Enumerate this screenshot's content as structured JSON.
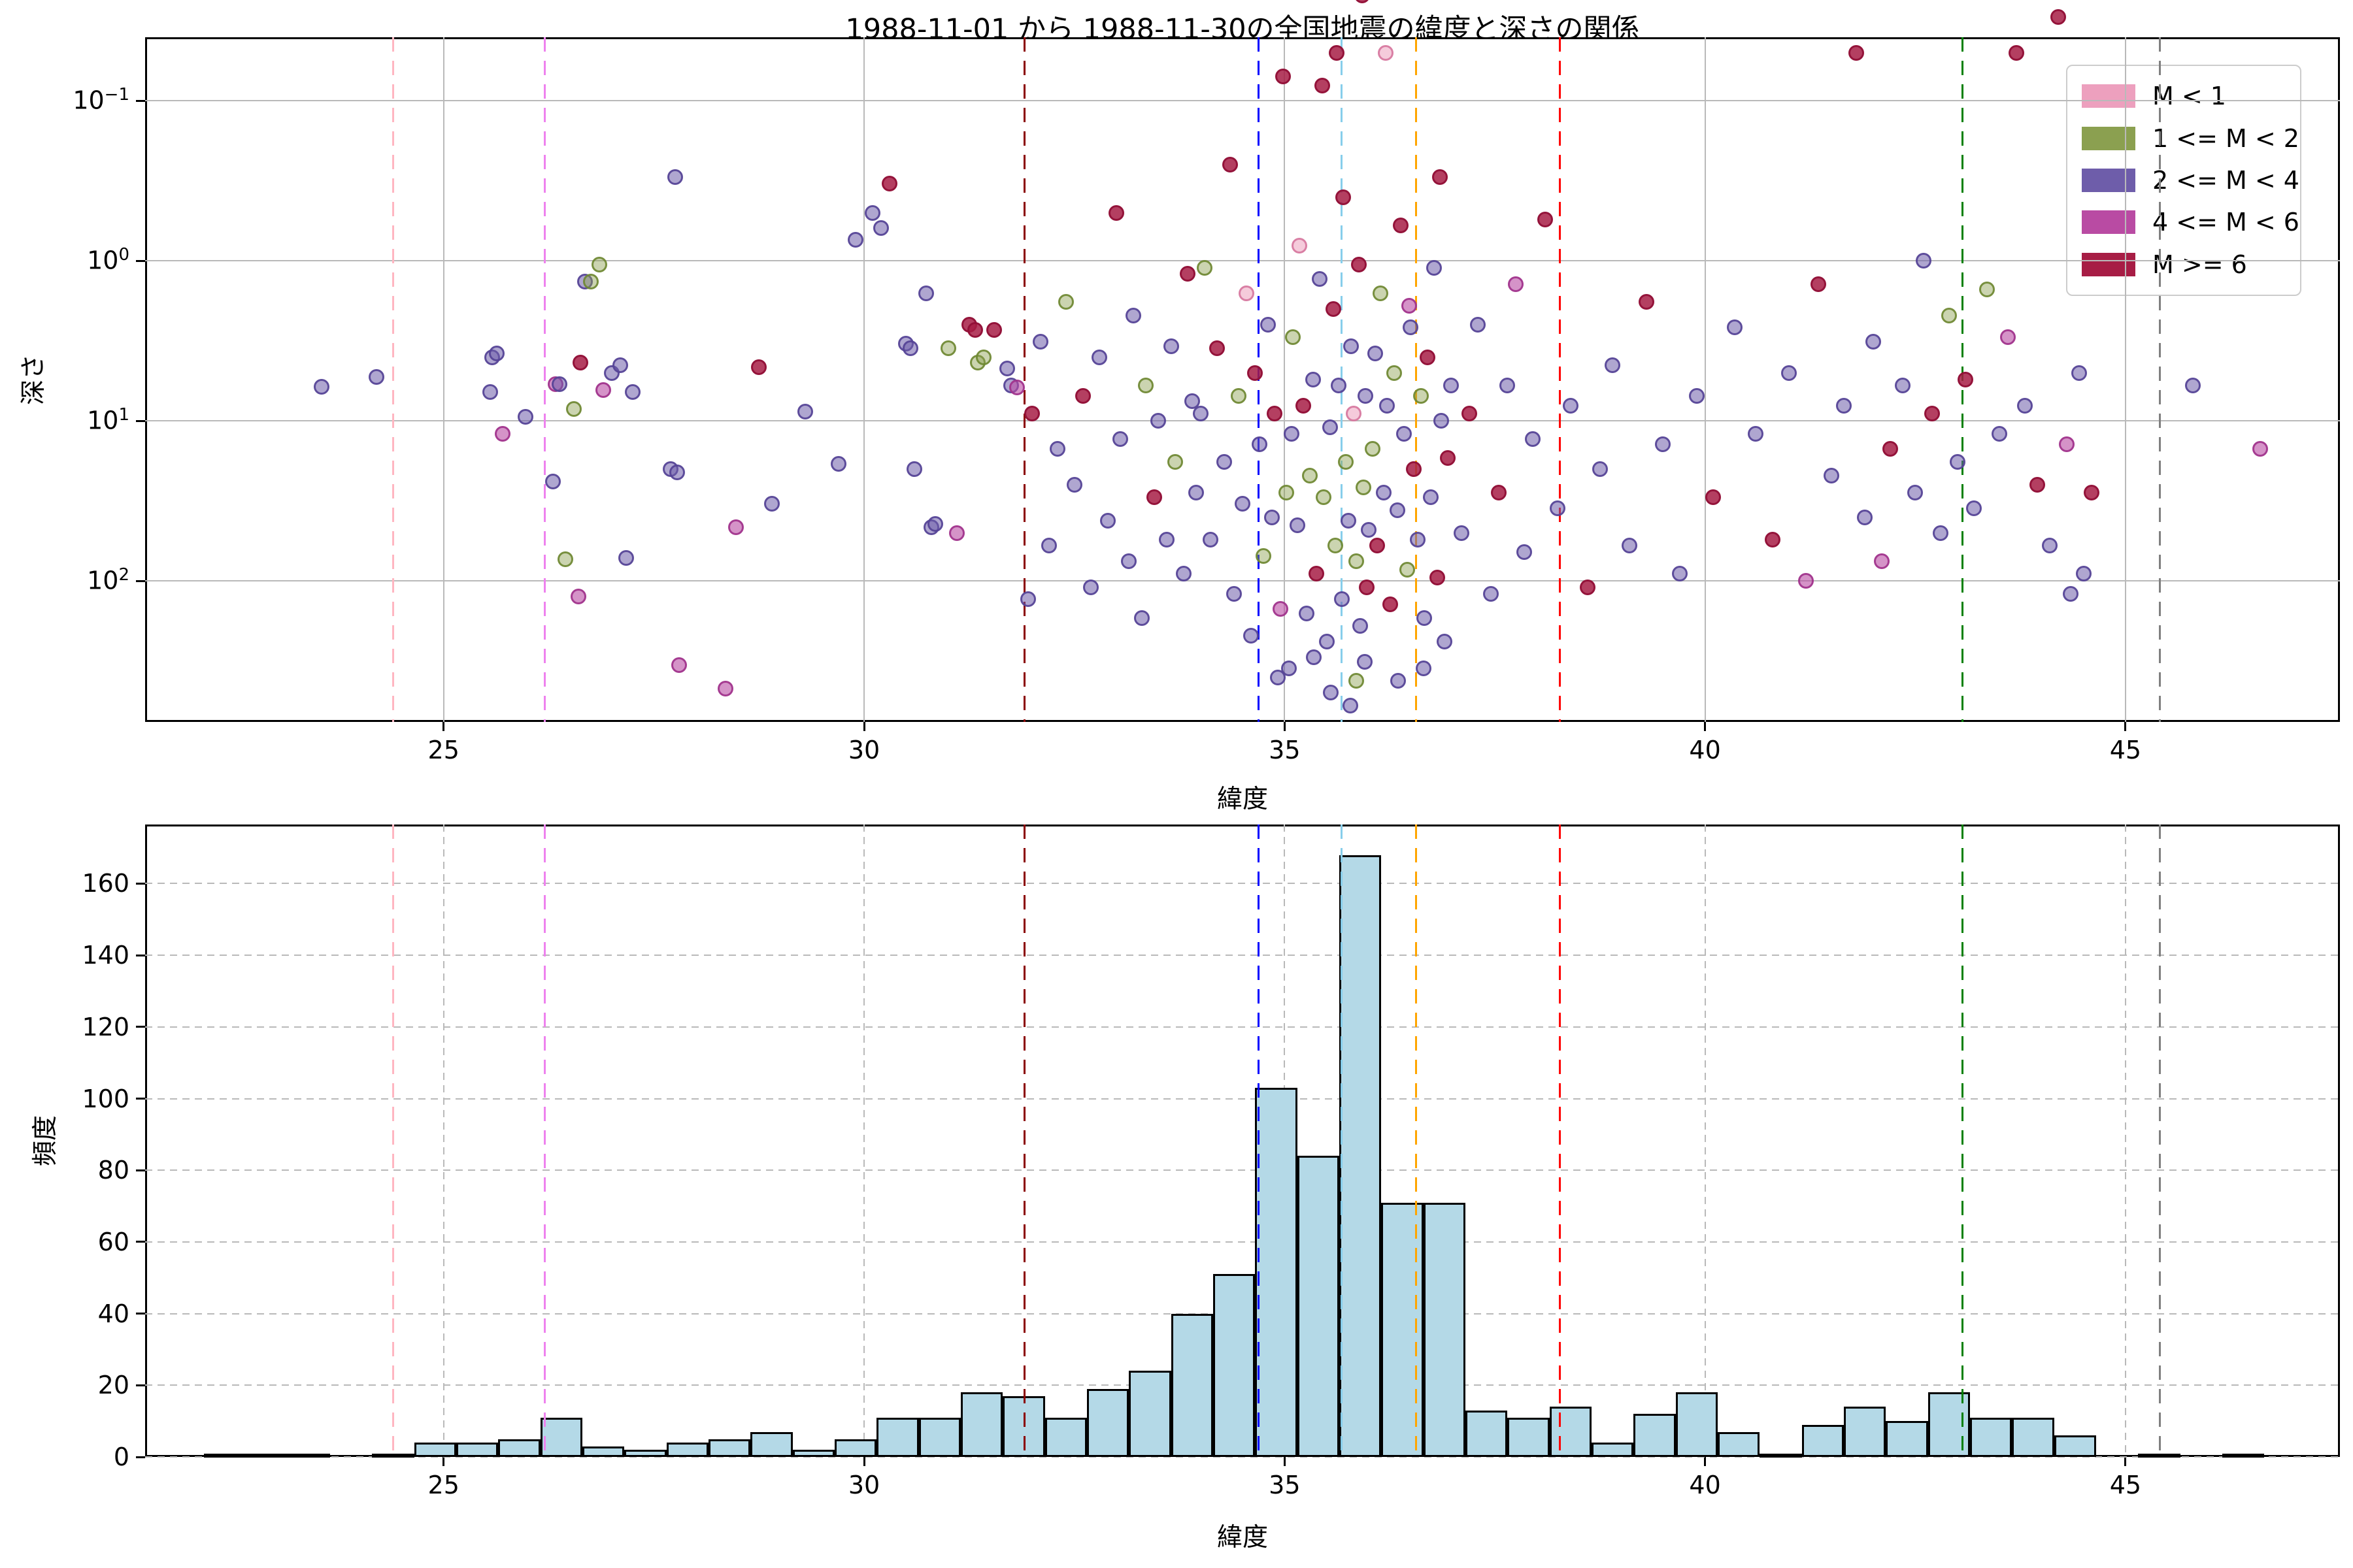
{
  "title": "1988-11-01 から 1988-11-30の全国地震の緯度と深さの関係",
  "chart_data": [
    {
      "type": "scatter",
      "title": "1988-11-01 から 1988-11-30の全国地震の緯度と深さの関係",
      "xlabel": "緯度",
      "ylabel": "深さ",
      "xlim": [
        21.45,
        47.55
      ],
      "xticks": [
        25,
        30,
        35,
        40,
        45
      ],
      "y_scale": "log_inverted",
      "ylim_top": 0.04,
      "ylim_bottom": 760,
      "yticks": [
        {
          "value": 0.1,
          "exp": "−1"
        },
        {
          "value": 1,
          "exp": "0"
        },
        {
          "value": 10,
          "exp": "1"
        },
        {
          "value": 100,
          "exp": "2"
        }
      ],
      "grid": "solid",
      "legend_position": "upper right",
      "categories": [
        {
          "label": "M < 1",
          "rgb": "237,160,190",
          "edge": "214,120,158",
          "fill_alpha": 0.55
        },
        {
          "label": "1 <= M < 2",
          "rgb": "139,160,80",
          "edge": "110,135,50",
          "fill_alpha": 0.45
        },
        {
          "label": "2 <= M < 4",
          "rgb": "110,93,170",
          "edge": "84,66,150",
          "fill_alpha": 0.55
        },
        {
          "label": "4 <= M < 6",
          "rgb": "185,75,163",
          "edge": "160,50,140",
          "fill_alpha": 0.6
        },
        {
          "label": "M >= 6",
          "rgb": "167,29,69",
          "edge": "145,15,55",
          "fill_alpha": 0.85
        }
      ],
      "reference_lines": [
        {
          "lat": 24.4,
          "color": "#ffb6c1"
        },
        {
          "lat": 26.2,
          "color": "#ee82ee"
        },
        {
          "lat": 31.91,
          "color": "#8b0000"
        },
        {
          "lat": 34.69,
          "color": "#0000ff"
        },
        {
          "lat": 35.68,
          "color": "#87ceeb"
        },
        {
          "lat": 36.56,
          "color": "#ffa500"
        },
        {
          "lat": 38.27,
          "color": "#ff0000"
        },
        {
          "lat": 43.06,
          "color": "#008000"
        },
        {
          "lat": 45.41,
          "color": "#808080"
        }
      ],
      "points": [
        [
          23.55,
          6.1,
          2
        ],
        [
          24.2,
          5.3,
          2
        ],
        [
          25.55,
          6.6,
          2
        ],
        [
          25.58,
          4.0,
          2
        ],
        [
          25.63,
          3.8,
          2
        ],
        [
          25.7,
          12,
          3
        ],
        [
          25.97,
          9.4,
          2
        ],
        [
          26.3,
          24,
          2
        ],
        [
          26.33,
          5.9,
          3
        ],
        [
          26.38,
          5.9,
          2
        ],
        [
          26.45,
          73,
          1
        ],
        [
          26.55,
          8.4,
          1
        ],
        [
          26.6,
          125,
          3
        ],
        [
          26.63,
          4.3,
          4
        ],
        [
          26.68,
          1.35,
          2
        ],
        [
          26.75,
          1.35,
          1
        ],
        [
          26.85,
          1.05,
          1
        ],
        [
          26.9,
          6.4,
          3
        ],
        [
          27.0,
          5.0,
          2
        ],
        [
          27.1,
          4.5,
          2
        ],
        [
          27.17,
          72,
          2
        ],
        [
          27.25,
          6.6,
          2
        ],
        [
          27.7,
          20,
          2
        ],
        [
          27.75,
          0.3,
          2
        ],
        [
          27.78,
          21,
          2
        ],
        [
          27.8,
          335,
          3
        ],
        [
          28.35,
          470,
          3
        ],
        [
          28.48,
          46,
          3
        ],
        [
          28.75,
          4.6,
          4
        ],
        [
          28.9,
          33,
          2
        ],
        [
          29.3,
          8.7,
          2
        ],
        [
          29.7,
          18.6,
          2
        ],
        [
          29.9,
          0.74,
          2
        ],
        [
          30.1,
          0.5,
          2
        ],
        [
          30.2,
          0.62,
          2
        ],
        [
          30.3,
          0.33,
          4
        ],
        [
          30.5,
          3.3,
          2
        ],
        [
          30.55,
          3.5,
          2
        ],
        [
          30.6,
          20,
          2
        ],
        [
          30.74,
          1.6,
          2
        ],
        [
          30.8,
          46,
          2
        ],
        [
          30.85,
          44,
          2
        ],
        [
          31.0,
          3.5,
          1
        ],
        [
          31.1,
          50,
          3
        ],
        [
          31.25,
          2.5,
          4
        ],
        [
          31.32,
          2.7,
          4
        ],
        [
          31.35,
          4.3,
          1
        ],
        [
          31.42,
          4.0,
          1
        ],
        [
          31.55,
          2.7,
          4
        ],
        [
          31.7,
          4.7,
          2
        ],
        [
          31.75,
          6,
          2
        ],
        [
          31.82,
          6.2,
          3
        ],
        [
          31.95,
          130,
          2
        ],
        [
          32.0,
          9,
          4
        ],
        [
          32.1,
          3.2,
          2
        ],
        [
          32.2,
          60,
          2
        ],
        [
          32.3,
          15,
          2
        ],
        [
          32.4,
          1.8,
          1
        ],
        [
          32.5,
          25,
          2
        ],
        [
          32.6,
          7,
          4
        ],
        [
          32.7,
          110,
          2
        ],
        [
          32.8,
          4,
          2
        ],
        [
          32.9,
          42,
          2
        ],
        [
          33.0,
          0.5,
          4
        ],
        [
          33.05,
          13,
          2
        ],
        [
          33.15,
          75,
          2
        ],
        [
          33.2,
          2.2,
          2
        ],
        [
          33.3,
          170,
          2
        ],
        [
          33.35,
          6,
          1
        ],
        [
          33.45,
          30,
          4
        ],
        [
          33.5,
          10,
          2
        ],
        [
          33.6,
          55,
          2
        ],
        [
          33.65,
          3.4,
          2
        ],
        [
          33.7,
          18,
          1
        ],
        [
          33.8,
          90,
          2
        ],
        [
          33.85,
          1.2,
          4
        ],
        [
          33.9,
          7.5,
          2
        ],
        [
          33.95,
          28,
          2
        ],
        [
          34.0,
          9,
          2
        ],
        [
          34.05,
          1.1,
          1
        ],
        [
          34.12,
          55,
          2
        ],
        [
          34.2,
          3.5,
          4
        ],
        [
          34.28,
          18,
          2
        ],
        [
          34.35,
          0.25,
          4
        ],
        [
          34.4,
          120,
          2
        ],
        [
          34.45,
          7,
          1
        ],
        [
          34.5,
          33,
          2
        ],
        [
          34.55,
          1.6,
          0
        ],
        [
          34.6,
          220,
          2
        ],
        [
          34.65,
          5,
          4
        ],
        [
          34.7,
          14,
          2
        ],
        [
          34.75,
          70,
          1
        ],
        [
          34.8,
          2.5,
          2
        ],
        [
          34.85,
          40,
          2
        ],
        [
          34.88,
          9,
          4
        ],
        [
          34.92,
          400,
          2
        ],
        [
          34.95,
          150,
          3
        ],
        [
          34.98,
          0.07,
          4
        ],
        [
          35.02,
          28,
          1
        ],
        [
          35.05,
          350,
          2
        ],
        [
          35.08,
          12,
          2
        ],
        [
          35.1,
          3,
          1
        ],
        [
          35.15,
          45,
          2
        ],
        [
          35.18,
          0.8,
          0
        ],
        [
          35.22,
          8,
          4
        ],
        [
          35.26,
          160,
          2
        ],
        [
          35.3,
          22,
          1
        ],
        [
          35.34,
          5.5,
          2
        ],
        [
          35.38,
          90,
          4
        ],
        [
          35.42,
          1.3,
          2
        ],
        [
          35.46,
          30,
          1
        ],
        [
          35.5,
          240,
          2
        ],
        [
          35.54,
          11,
          2
        ],
        [
          35.58,
          2,
          4
        ],
        [
          35.6,
          60,
          1
        ],
        [
          35.64,
          6,
          2
        ],
        [
          35.68,
          130,
          2
        ],
        [
          35.7,
          0.4,
          4
        ],
        [
          35.73,
          18,
          1
        ],
        [
          35.76,
          42,
          2
        ],
        [
          35.79,
          3.4,
          2
        ],
        [
          35.82,
          9,
          0
        ],
        [
          35.85,
          75,
          1
        ],
        [
          35.88,
          1.05,
          4
        ],
        [
          35.9,
          190,
          2
        ],
        [
          35.92,
          0.022,
          4
        ],
        [
          35.94,
          26,
          1
        ],
        [
          35.96,
          7,
          2
        ],
        [
          35.98,
          110,
          4
        ],
        [
          36.0,
          48,
          2
        ],
        [
          35.35,
          300,
          2
        ],
        [
          35.55,
          500,
          2
        ],
        [
          35.85,
          420,
          1
        ],
        [
          35.95,
          320,
          2
        ],
        [
          35.78,
          600,
          2
        ],
        [
          35.45,
          0.08,
          4
        ],
        [
          35.62,
          0.05,
          4
        ],
        [
          36.05,
          15,
          1
        ],
        [
          36.08,
          3.8,
          2
        ],
        [
          36.1,
          60,
          4
        ],
        [
          36.14,
          1.6,
          1
        ],
        [
          36.18,
          28,
          2
        ],
        [
          36.22,
          8,
          2
        ],
        [
          36.26,
          140,
          4
        ],
        [
          36.3,
          5,
          1
        ],
        [
          36.34,
          36,
          2
        ],
        [
          36.38,
          0.6,
          4
        ],
        [
          36.42,
          12,
          2
        ],
        [
          36.46,
          85,
          1
        ],
        [
          36.5,
          2.6,
          2
        ],
        [
          36.54,
          20,
          4
        ],
        [
          36.58,
          55,
          2
        ],
        [
          36.62,
          7,
          1
        ],
        [
          36.66,
          170,
          2
        ],
        [
          36.7,
          4,
          4
        ],
        [
          36.74,
          30,
          2
        ],
        [
          36.78,
          1.1,
          2
        ],
        [
          36.82,
          95,
          4
        ],
        [
          36.86,
          10,
          2
        ],
        [
          36.9,
          240,
          2
        ],
        [
          36.94,
          17,
          4
        ],
        [
          36.98,
          6,
          2
        ],
        [
          36.35,
          420,
          2
        ],
        [
          36.65,
          350,
          2
        ],
        [
          36.2,
          0.05,
          0
        ],
        [
          36.48,
          1.9,
          3
        ],
        [
          36.85,
          0.3,
          4
        ],
        [
          37.1,
          50,
          2
        ],
        [
          37.2,
          9,
          4
        ],
        [
          37.3,
          2.5,
          2
        ],
        [
          37.45,
          120,
          2
        ],
        [
          37.55,
          28,
          4
        ],
        [
          37.65,
          6,
          2
        ],
        [
          37.75,
          1.4,
          3
        ],
        [
          37.85,
          66,
          2
        ],
        [
          37.95,
          13,
          2
        ],
        [
          38.1,
          0.55,
          4
        ],
        [
          38.25,
          35,
          2
        ],
        [
          38.4,
          8,
          2
        ],
        [
          38.6,
          110,
          4
        ],
        [
          38.75,
          20,
          2
        ],
        [
          38.9,
          4.5,
          2
        ],
        [
          39.1,
          60,
          2
        ],
        [
          39.3,
          1.8,
          4
        ],
        [
          39.5,
          14,
          2
        ],
        [
          39.7,
          90,
          2
        ],
        [
          39.9,
          7,
          2
        ],
        [
          40.1,
          30,
          4
        ],
        [
          40.35,
          2.6,
          2
        ],
        [
          40.6,
          12,
          2
        ],
        [
          40.8,
          55,
          4
        ],
        [
          41.0,
          5,
          2
        ],
        [
          41.2,
          100,
          3
        ],
        [
          41.35,
          1.4,
          4
        ],
        [
          41.5,
          22,
          2
        ],
        [
          41.65,
          8,
          2
        ],
        [
          41.8,
          0.05,
          4
        ],
        [
          41.9,
          40,
          2
        ],
        [
          42.0,
          3.2,
          2
        ],
        [
          42.1,
          75,
          3
        ],
        [
          42.2,
          15,
          4
        ],
        [
          42.35,
          6,
          2
        ],
        [
          42.5,
          28,
          2
        ],
        [
          42.6,
          1.0,
          2
        ],
        [
          42.7,
          9,
          4
        ],
        [
          42.8,
          50,
          2
        ],
        [
          42.9,
          2.2,
          1
        ],
        [
          43.0,
          18,
          2
        ],
        [
          43.1,
          5.5,
          4
        ],
        [
          43.2,
          35,
          2
        ],
        [
          43.35,
          1.5,
          1
        ],
        [
          43.5,
          12,
          2
        ],
        [
          43.6,
          3,
          3
        ],
        [
          43.7,
          0.05,
          4
        ],
        [
          43.8,
          8,
          2
        ],
        [
          43.95,
          25,
          4
        ],
        [
          44.1,
          60,
          2
        ],
        [
          44.2,
          0.03,
          4
        ],
        [
          44.3,
          14,
          3
        ],
        [
          44.45,
          5,
          2
        ],
        [
          44.6,
          28,
          4
        ],
        [
          44.5,
          90,
          2
        ],
        [
          44.35,
          120,
          2
        ],
        [
          45.8,
          6,
          2
        ],
        [
          46.6,
          15,
          3
        ]
      ]
    },
    {
      "type": "bar",
      "xlabel": "緯度",
      "ylabel": "頻度",
      "xlim": [
        21.45,
        47.55
      ],
      "xticks": [
        25,
        30,
        35,
        40,
        45
      ],
      "ylim": [
        0,
        176.5
      ],
      "yticks": [
        0,
        20,
        40,
        60,
        80,
        100,
        120,
        140,
        160
      ],
      "grid": "dashed",
      "bar_color": "#b4d9e7",
      "bar_edge": "#000000",
      "bin_start": 22.15,
      "bin_width": 0.5,
      "values": [
        1,
        1,
        1,
        0,
        1,
        4,
        4,
        5,
        11,
        3,
        2,
        4,
        5,
        7,
        2,
        5,
        11,
        11,
        18,
        17,
        11,
        19,
        24,
        40,
        51,
        103,
        84,
        168,
        71,
        71,
        13,
        11,
        14,
        4,
        12,
        18,
        7,
        1,
        9,
        14,
        10,
        18,
        11,
        11,
        6,
        0,
        1,
        0,
        1
      ],
      "reference_lines": [
        {
          "lat": 24.4,
          "color": "#ffb6c1"
        },
        {
          "lat": 26.2,
          "color": "#ee82ee"
        },
        {
          "lat": 31.91,
          "color": "#8b0000"
        },
        {
          "lat": 34.69,
          "color": "#0000ff"
        },
        {
          "lat": 35.68,
          "color": "#87ceeb"
        },
        {
          "lat": 36.56,
          "color": "#ffa500"
        },
        {
          "lat": 38.27,
          "color": "#ff0000"
        },
        {
          "lat": 43.06,
          "color": "#008000"
        },
        {
          "lat": 45.41,
          "color": "#808080"
        }
      ]
    }
  ]
}
